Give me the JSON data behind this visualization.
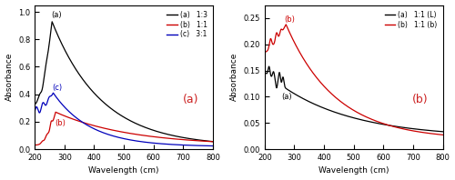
{
  "fig_width": 5.0,
  "fig_height": 1.98,
  "dpi": 100,
  "background_color": "#ffffff",
  "subplot_a": {
    "xlim": [
      200,
      800
    ],
    "ylim": [
      0,
      1.05
    ],
    "xlabel": "Wavelength (cm)",
    "ylabel": "Absorbance",
    "label_a": "(a)",
    "yticks": [
      0.0,
      0.2,
      0.4,
      0.6,
      0.8,
      1.0
    ],
    "xticks": [
      200,
      300,
      400,
      500,
      600,
      700,
      800
    ],
    "legend_entries": [
      "(a)   1:3",
      "(b)   1:1",
      "(c)   3:1"
    ],
    "legend_colors": [
      "black",
      "#cc0000",
      "#0000bb"
    ],
    "curve_label_a": "(a)",
    "curve_label_b": "(b)",
    "curve_label_c": "(c)"
  },
  "subplot_b": {
    "xlim": [
      200,
      800
    ],
    "ylim": [
      0.0,
      0.275
    ],
    "xlabel": "Wavelength (cm)",
    "ylabel": "Absorbance",
    "label_b": "(b)",
    "yticks": [
      0.0,
      0.05,
      0.1,
      0.15,
      0.2,
      0.25
    ],
    "xticks": [
      200,
      300,
      400,
      500,
      600,
      700,
      800
    ],
    "legend_entries": [
      "(a)   1:1 (L)",
      "(b)   1:1 (b)"
    ],
    "legend_colors": [
      "black",
      "#cc0000"
    ],
    "curve_label_a": "(a)",
    "curve_label_b": "(b)"
  }
}
